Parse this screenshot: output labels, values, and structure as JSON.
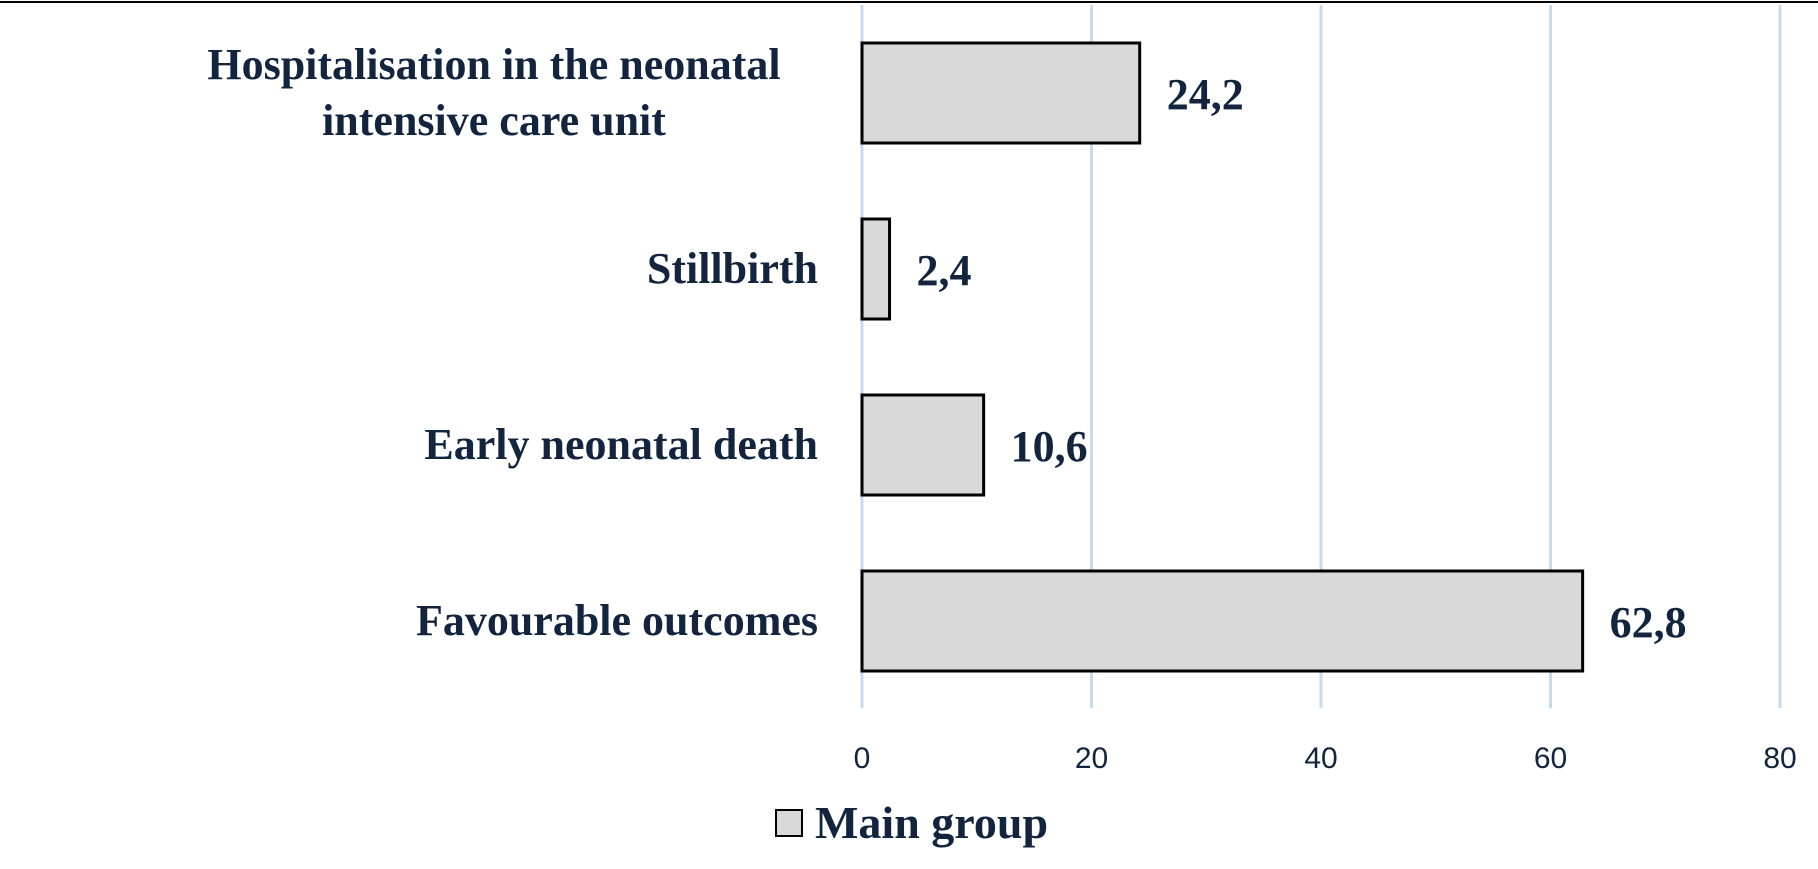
{
  "chart_data": {
    "type": "bar",
    "orientation": "horizontal",
    "categories": [
      [
        "Hospitalisation in the neonatal",
        "intensive care unit"
      ],
      [
        "Stillbirth"
      ],
      [
        "Early neonatal death"
      ],
      [
        "Favourable outcomes"
      ]
    ],
    "series": [
      {
        "name": "Main group",
        "values": [
          24.2,
          2.4,
          10.6,
          62.8
        ],
        "data_labels": [
          "24,2",
          "2,4",
          "10,6",
          "62,8"
        ]
      }
    ],
    "xlim": [
      0,
      80
    ],
    "x_ticks": [
      "0",
      "20",
      "40",
      "60",
      "80"
    ],
    "grid": "vertical",
    "legend": "bottom",
    "colors": {
      "bar_fill": "#d9d9d9",
      "bar_stroke": "#000000",
      "grid": "#c5dbee",
      "text": "#13253e",
      "top_rule": "#000000"
    }
  }
}
